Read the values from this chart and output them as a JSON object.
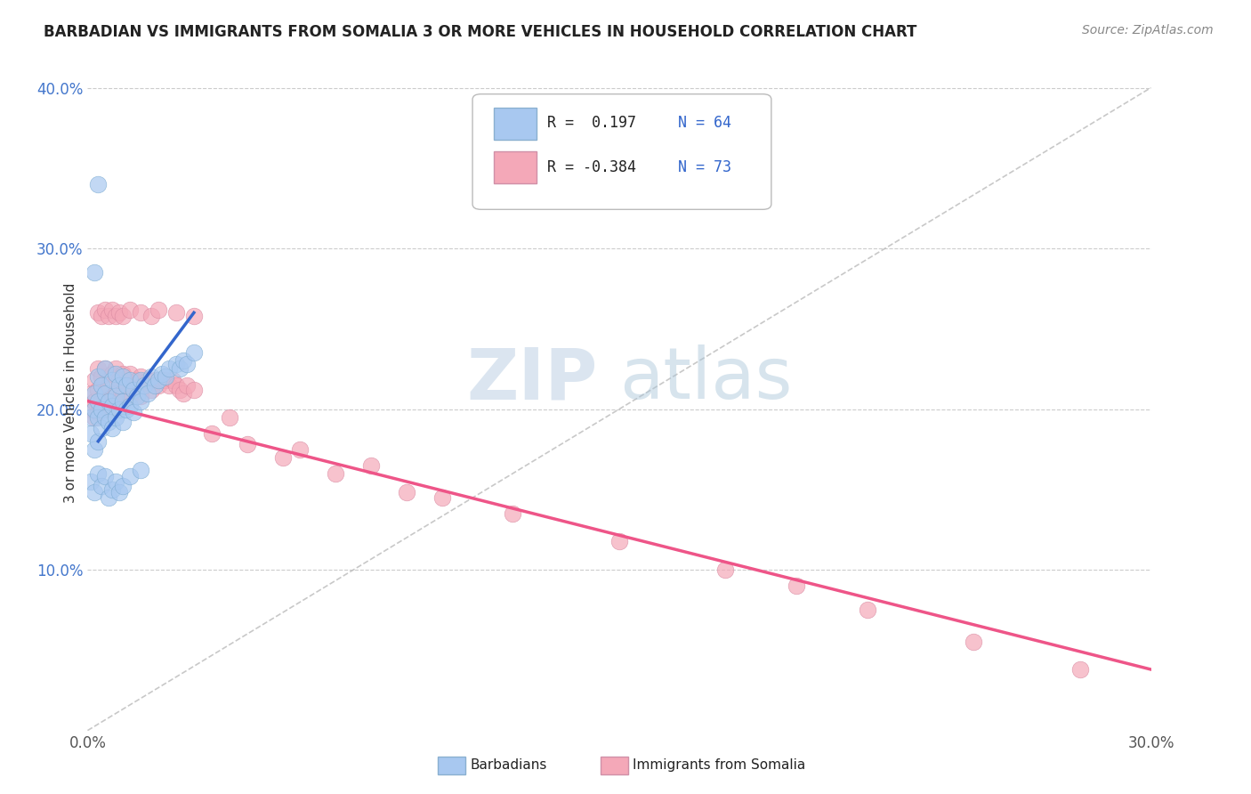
{
  "title": "BARBADIAN VS IMMIGRANTS FROM SOMALIA 3 OR MORE VEHICLES IN HOUSEHOLD CORRELATION CHART",
  "source": "Source: ZipAtlas.com",
  "ylabel": "3 or more Vehicles in Household",
  "xlim": [
    0.0,
    0.3
  ],
  "ylim": [
    0.0,
    0.42
  ],
  "xticks": [
    0.0,
    0.3
  ],
  "xticklabels": [
    "0.0%",
    "30.0%"
  ],
  "yticks": [
    0.1,
    0.2,
    0.3,
    0.4
  ],
  "yticklabels": [
    "10.0%",
    "20.0%",
    "30.0%",
    "40.0%"
  ],
  "grid_yticks": [
    0.1,
    0.2,
    0.3,
    0.4
  ],
  "barbadian_color": "#a8c8f0",
  "barbadian_edge": "#7aaad0",
  "somalia_color": "#f4a8b8",
  "somalia_edge": "#d888a0",
  "barbadian_line_color": "#3366cc",
  "somalia_line_color": "#ee5588",
  "ref_line_color": "#bbbbbb",
  "legend_R1": "R =  0.197",
  "legend_N1": "N = 64",
  "legend_R2": "R = -0.384",
  "legend_N2": "N = 73",
  "legend_label1": "Barbadians",
  "legend_label2": "Immigrants from Somalia",
  "watermark_zip": "ZIP",
  "watermark_atlas": "atlas",
  "barbadian_x": [
    0.001,
    0.001,
    0.002,
    0.002,
    0.002,
    0.003,
    0.003,
    0.003,
    0.003,
    0.004,
    0.004,
    0.004,
    0.005,
    0.005,
    0.005,
    0.006,
    0.006,
    0.007,
    0.007,
    0.007,
    0.008,
    0.008,
    0.008,
    0.009,
    0.009,
    0.01,
    0.01,
    0.01,
    0.011,
    0.011,
    0.012,
    0.012,
    0.013,
    0.013,
    0.014,
    0.015,
    0.015,
    0.016,
    0.017,
    0.018,
    0.019,
    0.02,
    0.021,
    0.022,
    0.023,
    0.025,
    0.026,
    0.027,
    0.028,
    0.03,
    0.001,
    0.002,
    0.003,
    0.004,
    0.005,
    0.006,
    0.007,
    0.008,
    0.009,
    0.01,
    0.012,
    0.015,
    0.003,
    0.002
  ],
  "barbadian_y": [
    0.195,
    0.185,
    0.21,
    0.2,
    0.175,
    0.22,
    0.205,
    0.195,
    0.18,
    0.215,
    0.2,
    0.188,
    0.225,
    0.21,
    0.195,
    0.205,
    0.192,
    0.218,
    0.202,
    0.188,
    0.222,
    0.208,
    0.195,
    0.215,
    0.2,
    0.22,
    0.205,
    0.192,
    0.215,
    0.2,
    0.218,
    0.202,
    0.212,
    0.198,
    0.208,
    0.218,
    0.205,
    0.215,
    0.21,
    0.22,
    0.215,
    0.218,
    0.222,
    0.22,
    0.225,
    0.228,
    0.225,
    0.23,
    0.228,
    0.235,
    0.155,
    0.148,
    0.16,
    0.152,
    0.158,
    0.145,
    0.15,
    0.155,
    0.148,
    0.152,
    0.158,
    0.162,
    0.34,
    0.285
  ],
  "somalia_x": [
    0.001,
    0.001,
    0.002,
    0.002,
    0.002,
    0.003,
    0.003,
    0.003,
    0.004,
    0.004,
    0.005,
    0.005,
    0.006,
    0.006,
    0.007,
    0.007,
    0.008,
    0.008,
    0.009,
    0.009,
    0.01,
    0.01,
    0.011,
    0.012,
    0.012,
    0.013,
    0.014,
    0.015,
    0.015,
    0.016,
    0.017,
    0.018,
    0.019,
    0.02,
    0.021,
    0.022,
    0.023,
    0.024,
    0.025,
    0.026,
    0.027,
    0.028,
    0.03,
    0.003,
    0.004,
    0.005,
    0.006,
    0.007,
    0.008,
    0.009,
    0.01,
    0.012,
    0.015,
    0.018,
    0.02,
    0.025,
    0.03,
    0.04,
    0.06,
    0.08,
    0.1,
    0.12,
    0.15,
    0.18,
    0.2,
    0.22,
    0.25,
    0.28,
    0.035,
    0.045,
    0.055,
    0.07,
    0.09
  ],
  "somalia_y": [
    0.21,
    0.2,
    0.218,
    0.205,
    0.195,
    0.225,
    0.212,
    0.198,
    0.22,
    0.205,
    0.225,
    0.21,
    0.215,
    0.2,
    0.222,
    0.208,
    0.225,
    0.21,
    0.218,
    0.205,
    0.222,
    0.208,
    0.215,
    0.222,
    0.208,
    0.215,
    0.218,
    0.22,
    0.208,
    0.215,
    0.218,
    0.212,
    0.218,
    0.215,
    0.218,
    0.218,
    0.215,
    0.218,
    0.215,
    0.212,
    0.21,
    0.215,
    0.212,
    0.26,
    0.258,
    0.262,
    0.258,
    0.262,
    0.258,
    0.26,
    0.258,
    0.262,
    0.26,
    0.258,
    0.262,
    0.26,
    0.258,
    0.195,
    0.175,
    0.165,
    0.145,
    0.135,
    0.118,
    0.1,
    0.09,
    0.075,
    0.055,
    0.038,
    0.185,
    0.178,
    0.17,
    0.16,
    0.148
  ],
  "blue_line_x": [
    0.003,
    0.03
  ],
  "blue_line_y": [
    0.18,
    0.26
  ],
  "pink_line_x": [
    0.0,
    0.3
  ],
  "pink_line_y": [
    0.205,
    0.038
  ]
}
